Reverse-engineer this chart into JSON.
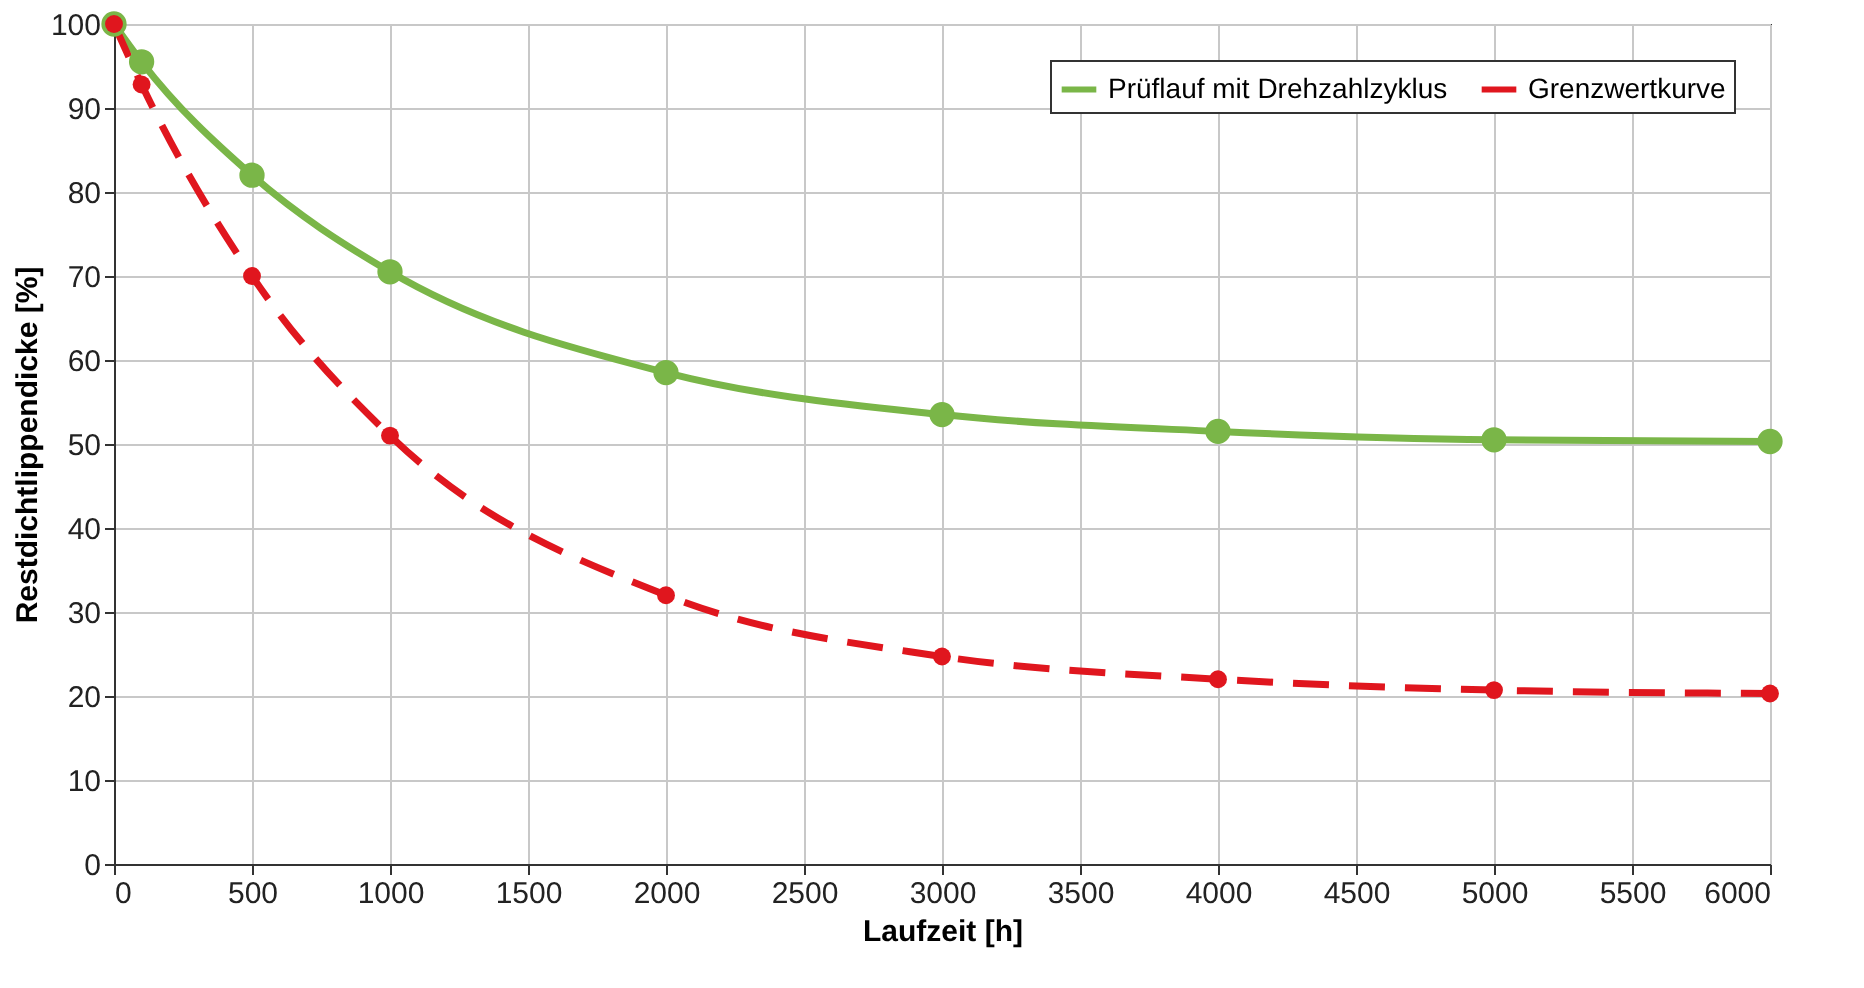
{
  "chart_data": {
    "type": "line",
    "xlabel": "Laufzeit [h]",
    "ylabel": "Restdichtlippendicke [%]",
    "x": [
      0,
      100,
      500,
      1000,
      2000,
      3000,
      4000,
      5000,
      6000
    ],
    "series": [
      {
        "name": "Prüflauf mit Drehzahlzyklus",
        "color": "#7ab648",
        "line_style": "solid",
        "values": [
          100,
          95.5,
          82,
          70.5,
          58.5,
          53.5,
          51.5,
          50.5,
          50.3
        ]
      },
      {
        "name": "Grenzwertkurve",
        "color": "#e0161e",
        "line_style": "dashed",
        "values": [
          100,
          92.8,
          70,
          51,
          32,
          24.7,
          22,
          20.7,
          20.3
        ]
      }
    ],
    "xlim": [
      0,
      6000
    ],
    "xticks": [
      0,
      500,
      1000,
      1500,
      2000,
      2500,
      3000,
      3500,
      4000,
      4500,
      5000,
      5500,
      6000
    ],
    "ylim": [
      0,
      100
    ],
    "yticks": [
      0,
      10,
      20,
      30,
      40,
      50,
      60,
      70,
      80,
      90,
      100
    ],
    "grid": true,
    "legend": "top right",
    "marker": "circle"
  }
}
